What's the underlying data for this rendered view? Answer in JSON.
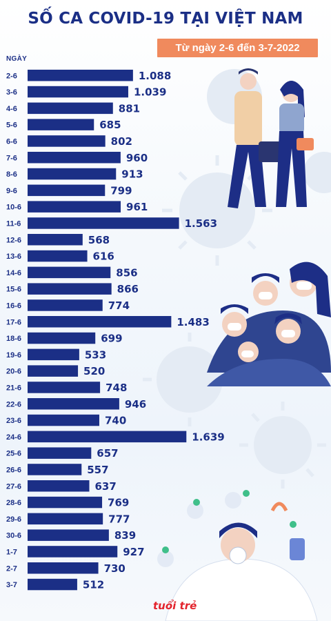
{
  "header": {
    "title": "SỐ CA COVID-19 TẠI VIỆT NAM",
    "date_range": "Từ ngày 2-6 đến 3-7-2022"
  },
  "logo": {
    "text": "tuổi trẻ"
  },
  "colors": {
    "bar": "#1b2f86",
    "accent": "#f08a5d",
    "title": "#1b2f86",
    "logo": "#e3232c"
  },
  "chart_data": {
    "type": "bar",
    "orientation": "horizontal",
    "ylabel": "NGÀY",
    "categories": [
      "2-6",
      "3-6",
      "4-6",
      "5-6",
      "6-6",
      "7-6",
      "8-6",
      "9-6",
      "10-6",
      "11-6",
      "12-6",
      "13-6",
      "14-6",
      "15-6",
      "16-6",
      "17-6",
      "18-6",
      "19-6",
      "20-6",
      "21-6",
      "22-6",
      "23-6",
      "24-6",
      "25-6",
      "26-6",
      "27-6",
      "28-6",
      "29-6",
      "30-6",
      "1-7",
      "2-7",
      "3-7"
    ],
    "values": [
      1088,
      1039,
      881,
      685,
      802,
      960,
      913,
      799,
      961,
      1563,
      568,
      616,
      856,
      866,
      774,
      1483,
      699,
      533,
      520,
      748,
      946,
      740,
      1639,
      657,
      557,
      637,
      769,
      777,
      839,
      927,
      730,
      512
    ],
    "value_labels": [
      "1.088",
      "1.039",
      "881",
      "685",
      "802",
      "960",
      "913",
      "799",
      "961",
      "1.563",
      "568",
      "616",
      "856",
      "866",
      "774",
      "1.483",
      "699",
      "533",
      "520",
      "748",
      "946",
      "740",
      "1.639",
      "657",
      "557",
      "637",
      "769",
      "777",
      "839",
      "927",
      "730",
      "512"
    ]
  }
}
